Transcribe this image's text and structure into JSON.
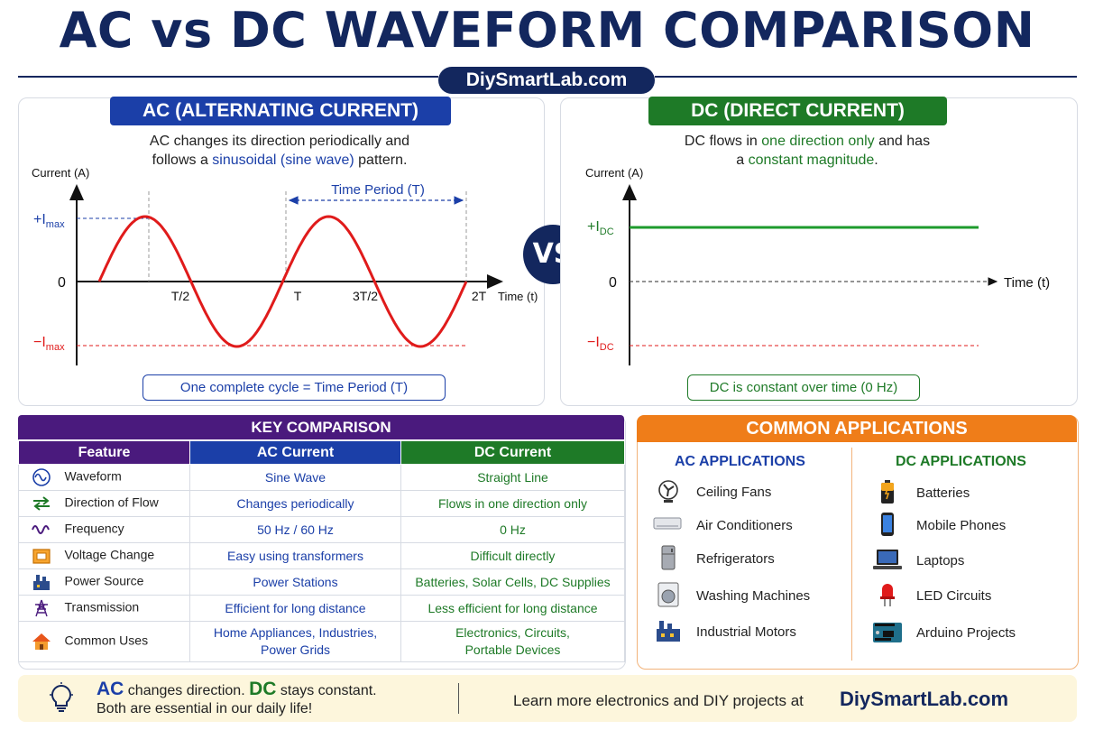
{
  "title": "AC vs DC WAVEFORM COMPARISON",
  "site": "DiySmartLab.com",
  "vs": "VS",
  "ac_panel": {
    "header": "AC (ALTERNATING CURRENT)",
    "desc_line1": "AC changes its direction periodically and",
    "desc_line2_pre": "follows a ",
    "desc_line2_hl": "sinusoidal (sine wave)",
    "desc_line2_post": " pattern.",
    "ylabel": "Current (A)",
    "xlabel": "Time (t)",
    "tick_imax": "+I",
    "tick_neg_imax": "−I",
    "sub_max": "max",
    "zero": "0",
    "x_ticks": [
      "T/2",
      "T",
      "3T/2",
      "2T"
    ],
    "period_label": "Time Period (T)",
    "caption": "One complete cycle = Time Period (T)"
  },
  "dc_panel": {
    "header": "DC (DIRECT CURRENT)",
    "desc_line1_pre": "DC flows in ",
    "desc_line1_hl": "one direction only",
    "desc_line1_post": " and has",
    "desc_line2_pre": "a ",
    "desc_line2_hl": "constant magnitude",
    "desc_line2_post": ".",
    "ylabel": "Current (A)",
    "xlabel": "Time (t)",
    "tick_idc": "+I",
    "tick_neg_idc": "−I",
    "sub_dc": "DC",
    "zero": "0",
    "caption": "DC is constant over time (0 Hz)"
  },
  "comparison": {
    "title": "KEY COMPARISON",
    "headers": [
      "Feature",
      "AC Current",
      "DC Current"
    ],
    "rows": [
      {
        "icon": "waveform-icon",
        "feature": "Waveform",
        "ac": "Sine Wave",
        "dc": "Straight Line"
      },
      {
        "icon": "direction-arrows-icon",
        "feature": "Direction of Flow",
        "ac": "Changes periodically",
        "dc": "Flows in one direction only"
      },
      {
        "icon": "frequency-wave-icon",
        "feature": "Frequency",
        "ac": "50 Hz / 60 Hz",
        "dc": "0 Hz"
      },
      {
        "icon": "transformer-icon",
        "feature": "Voltage Change",
        "ac": "Easy using transformers",
        "dc": "Difficult directly"
      },
      {
        "icon": "power-plant-icon",
        "feature": "Power Source",
        "ac": "Power Stations",
        "dc": "Batteries, Solar Cells, DC Supplies"
      },
      {
        "icon": "transmission-tower-icon",
        "feature": "Transmission",
        "ac": "Efficient for long distance",
        "dc": "Less efficient for long distance"
      },
      {
        "icon": "house-icon",
        "feature": "Common Uses",
        "ac": "Home Appliances, Industries,",
        "ac2": "Power Grids",
        "dc": "Electronics, Circuits,",
        "dc2": "Portable Devices"
      }
    ]
  },
  "applications": {
    "title": "COMMON APPLICATIONS",
    "ac_head": "AC APPLICATIONS",
    "dc_head": "DC APPLICATIONS",
    "ac_items": [
      {
        "icon": "ceiling-fan-icon",
        "label": "Ceiling Fans"
      },
      {
        "icon": "air-conditioner-icon",
        "label": "Air Conditioners"
      },
      {
        "icon": "refrigerator-icon",
        "label": "Refrigerators"
      },
      {
        "icon": "washing-machine-icon",
        "label": "Washing Machines"
      },
      {
        "icon": "industrial-motor-icon",
        "label": "Industrial Motors"
      }
    ],
    "dc_items": [
      {
        "icon": "battery-icon",
        "label": "Batteries"
      },
      {
        "icon": "mobile-phone-icon",
        "label": "Mobile Phones"
      },
      {
        "icon": "laptop-icon",
        "label": "Laptops"
      },
      {
        "icon": "led-icon",
        "label": "LED Circuits"
      },
      {
        "icon": "arduino-board-icon",
        "label": "Arduino Projects"
      }
    ]
  },
  "footer": {
    "ac_word": "AC",
    "ac_text": " changes direction. ",
    "dc_word": "DC",
    "dc_text": " stays constant.",
    "line2": "Both are essential in our daily life!",
    "learn": "Learn more electronics and DIY projects at",
    "site": "DiySmartLab.com"
  },
  "colors": {
    "navy": "#13275e",
    "ac_blue": "#1b3fa8",
    "dc_green": "#1e7a27",
    "ac_wave": "#e01b1b",
    "purple": "#4a1a7d",
    "orange": "#ef7d19"
  }
}
